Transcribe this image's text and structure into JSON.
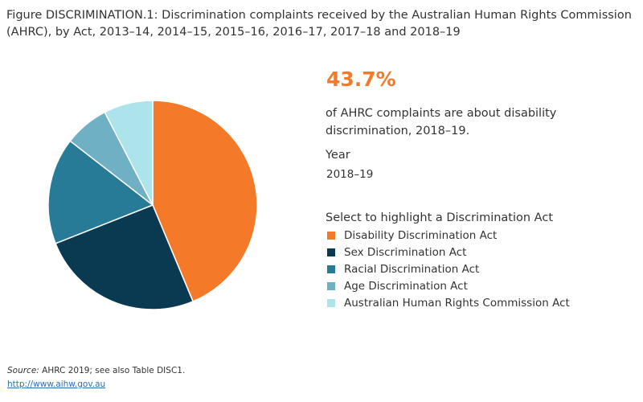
{
  "title": "Figure DISCRIMINATION.1: Discrimination complaints received by the Australian Human Rights Commission (AHRC), by Act, 2013–14, 2014–15, 2015–16, 2016–17, 2017–18 and 2018–19",
  "highlight": {
    "value": "43.7%",
    "description": "of AHRC complaints are about disability discrimination, 2018–19."
  },
  "year": {
    "label": "Year",
    "value": "2018–19"
  },
  "legend": {
    "title": "Select to highlight a Discrimination Act",
    "items": [
      {
        "label": "Disability Discrimination Act",
        "color": "#f47a29"
      },
      {
        "label": "Sex Discrimination Act",
        "color": "#0a3a52"
      },
      {
        "label": "Racial Discrimination Act",
        "color": "#287b96"
      },
      {
        "label": "Age Discrimination Act",
        "color": "#6fb0c4"
      },
      {
        "label": "Australian Human Rights Commission Act",
        "color": "#ade4ec"
      }
    ]
  },
  "chart_data": {
    "type": "pie",
    "categories": [
      "Disability Discrimination Act",
      "Sex Discrimination Act",
      "Racial Discrimination Act",
      "Age Discrimination Act",
      "Australian Human Rights Commission Act"
    ],
    "values": [
      43.7,
      25.3,
      16.5,
      6.9,
      7.6
    ],
    "colors": [
      "#f47a29",
      "#0a3a52",
      "#287b96",
      "#6fb0c4",
      "#ade4ec"
    ],
    "title": "Figure DISCRIMINATION.1: Discrimination complaints received by the Australian Human Rights Commission (AHRC), by Act, 2013–14, 2014–15, 2015–16, 2016–17, 2017–18 and 2018–19"
  },
  "footer": {
    "source_label": "Source:",
    "source_text": " AHRC 2019; see also Table DISC1.",
    "link": "http://www.aihw.gov.au"
  }
}
